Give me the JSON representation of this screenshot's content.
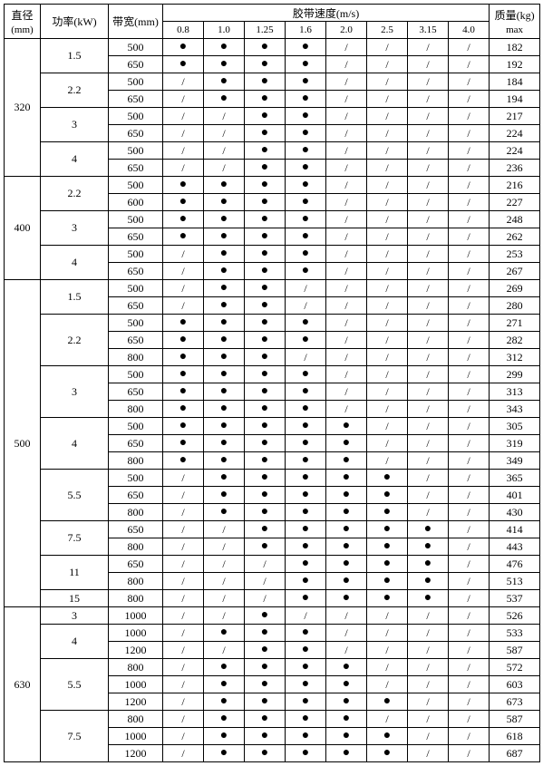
{
  "dot": "●",
  "slash": "/",
  "header": {
    "diameter": "直径",
    "diameter_unit": "(mm)",
    "power": "功率(kW)",
    "width": "带宽(mm)",
    "speed": "胶带速度(m/s)",
    "mass": "质量(kg)",
    "mass_sub": "max",
    "speeds": [
      "0.8",
      "1.0",
      "1.25",
      "1.6",
      "2.0",
      "2.5",
      "3.15",
      "4.0"
    ]
  },
  "colwidths": {
    "diameter": 40,
    "power": 75,
    "width": 60,
    "speed": 45,
    "mass": 56
  },
  "groups": [
    {
      "diameter": "320",
      "powers": [
        {
          "power": "1.5",
          "rows": [
            {
              "w": "500",
              "s": [
                "d",
                "d",
                "d",
                "d",
                "/",
                "/",
                "/",
                "/"
              ],
              "m": "182"
            },
            {
              "w": "650",
              "s": [
                "d",
                "d",
                "d",
                "d",
                "/",
                "/",
                "/",
                "/"
              ],
              "m": "192"
            }
          ]
        },
        {
          "power": "2.2",
          "rows": [
            {
              "w": "500",
              "s": [
                "/",
                "d",
                "d",
                "d",
                "/",
                "/",
                "/",
                "/"
              ],
              "m": "184"
            },
            {
              "w": "650",
              "s": [
                "/",
                "d",
                "d",
                "d",
                "/",
                "/",
                "/",
                "/"
              ],
              "m": "194"
            }
          ]
        },
        {
          "power": "3",
          "rows": [
            {
              "w": "500",
              "s": [
                "/",
                "/",
                "d",
                "d",
                "/",
                "/",
                "/",
                "/"
              ],
              "m": "217"
            },
            {
              "w": "650",
              "s": [
                "/",
                "/",
                "d",
                "d",
                "/",
                "/",
                "/",
                "/"
              ],
              "m": "224"
            }
          ]
        },
        {
          "power": "4",
          "rows": [
            {
              "w": "500",
              "s": [
                "/",
                "/",
                "d",
                "d",
                "/",
                "/",
                "/",
                "/"
              ],
              "m": "224"
            },
            {
              "w": "650",
              "s": [
                "/",
                "/",
                "d",
                "d",
                "/",
                "/",
                "/",
                "/"
              ],
              "m": "236"
            }
          ]
        }
      ]
    },
    {
      "diameter": "400",
      "powers": [
        {
          "power": "2.2",
          "rows": [
            {
              "w": "500",
              "s": [
                "d",
                "d",
                "d",
                "d",
                "/",
                "/",
                "/",
                "/"
              ],
              "m": "216"
            },
            {
              "w": "600",
              "s": [
                "d",
                "d",
                "d",
                "d",
                "/",
                "/",
                "/",
                "/"
              ],
              "m": "227"
            }
          ]
        },
        {
          "power": "3",
          "rows": [
            {
              "w": "500",
              "s": [
                "d",
                "d",
                "d",
                "d",
                "/",
                "/",
                "/",
                "/"
              ],
              "m": "248"
            },
            {
              "w": "650",
              "s": [
                "d",
                "d",
                "d",
                "d",
                "/",
                "/",
                "/",
                "/"
              ],
              "m": "262"
            }
          ]
        },
        {
          "power": "4",
          "rows": [
            {
              "w": "500",
              "s": [
                "/",
                "d",
                "d",
                "d",
                "/",
                "/",
                "/",
                "/"
              ],
              "m": "253"
            },
            {
              "w": "650",
              "s": [
                "/",
                "d",
                "d",
                "d",
                "/",
                "/",
                "/",
                "/"
              ],
              "m": "267"
            }
          ]
        }
      ]
    },
    {
      "diameter": "500",
      "powers": [
        {
          "power": "1.5",
          "rows": [
            {
              "w": "500",
              "s": [
                "/",
                "d",
                "d",
                "/",
                "/",
                "/",
                "/",
                "/"
              ],
              "m": "269"
            },
            {
              "w": "650",
              "s": [
                "/",
                "d",
                "d",
                "/",
                "/",
                "/",
                "/",
                "/"
              ],
              "m": "280"
            }
          ]
        },
        {
          "power": "2.2",
          "rows": [
            {
              "w": "500",
              "s": [
                "d",
                "d",
                "d",
                "d",
                "/",
                "/",
                "/",
                "/"
              ],
              "m": "271"
            },
            {
              "w": "650",
              "s": [
                "d",
                "d",
                "d",
                "d",
                "/",
                "/",
                "/",
                "/"
              ],
              "m": "282"
            },
            {
              "w": "800",
              "s": [
                "d",
                "d",
                "d",
                "/",
                "/",
                "/",
                "/",
                "/"
              ],
              "m": "312"
            }
          ]
        },
        {
          "power": "3",
          "rows": [
            {
              "w": "500",
              "s": [
                "d",
                "d",
                "d",
                "d",
                "/",
                "/",
                "/",
                "/"
              ],
              "m": "299"
            },
            {
              "w": "650",
              "s": [
                "d",
                "d",
                "d",
                "d",
                "/",
                "/",
                "/",
                "/"
              ],
              "m": "313"
            },
            {
              "w": "800",
              "s": [
                "d",
                "d",
                "d",
                "d",
                "/",
                "/",
                "/",
                "/"
              ],
              "m": "343"
            }
          ]
        },
        {
          "power": "4",
          "rows": [
            {
              "w": "500",
              "s": [
                "d",
                "d",
                "d",
                "d",
                "d",
                "/",
                "/",
                "/"
              ],
              "m": "305"
            },
            {
              "w": "650",
              "s": [
                "d",
                "d",
                "d",
                "d",
                "d",
                "/",
                "/",
                "/"
              ],
              "m": "319"
            },
            {
              "w": "800",
              "s": [
                "d",
                "d",
                "d",
                "d",
                "d",
                "/",
                "/",
                "/"
              ],
              "m": "349"
            }
          ]
        },
        {
          "power": "5.5",
          "rows": [
            {
              "w": "500",
              "s": [
                "/",
                "d",
                "d",
                "d",
                "d",
                "d",
                "/",
                "/"
              ],
              "m": "365"
            },
            {
              "w": "650",
              "s": [
                "/",
                "d",
                "d",
                "d",
                "d",
                "d",
                "/",
                "/"
              ],
              "m": "401"
            },
            {
              "w": "800",
              "s": [
                "/",
                "d",
                "d",
                "d",
                "d",
                "d",
                "/",
                "/"
              ],
              "m": "430"
            }
          ]
        },
        {
          "power": "7.5",
          "rows": [
            {
              "w": "650",
              "s": [
                "/",
                "/",
                "d",
                "d",
                "d",
                "d",
                "d",
                "/"
              ],
              "m": "414"
            },
            {
              "w": "800",
              "s": [
                "/",
                "/",
                "d",
                "d",
                "d",
                "d",
                "d",
                "/"
              ],
              "m": "443"
            }
          ]
        },
        {
          "power": "11",
          "rows": [
            {
              "w": "650",
              "s": [
                "/",
                "/",
                "/",
                "d",
                "d",
                "d",
                "d",
                "/"
              ],
              "m": "476"
            },
            {
              "w": "800",
              "s": [
                "/",
                "/",
                "/",
                "d",
                "d",
                "d",
                "d",
                "/"
              ],
              "m": "513"
            }
          ]
        },
        {
          "power": "15",
          "rows": [
            {
              "w": "800",
              "s": [
                "/",
                "/",
                "/",
                "d",
                "d",
                "d",
                "d",
                "/"
              ],
              "m": "537"
            }
          ]
        }
      ]
    },
    {
      "diameter": "630",
      "powers": [
        {
          "power": "3",
          "rows": [
            {
              "w": "1000",
              "s": [
                "/",
                "/",
                "d",
                "/",
                "/",
                "/",
                "/",
                "/"
              ],
              "m": "526"
            }
          ]
        },
        {
          "power": "4",
          "rows": [
            {
              "w": "1000",
              "s": [
                "/",
                "d",
                "d",
                "d",
                "/",
                "/",
                "/",
                "/"
              ],
              "m": "533"
            },
            {
              "w": "1200",
              "s": [
                "/",
                "/",
                "d",
                "d",
                "/",
                "/",
                "/",
                "/"
              ],
              "m": "587"
            }
          ]
        },
        {
          "power": "5.5",
          "rows": [
            {
              "w": "800",
              "s": [
                "/",
                "d",
                "d",
                "d",
                "d",
                "/",
                "/",
                "/"
              ],
              "m": "572"
            },
            {
              "w": "1000",
              "s": [
                "/",
                "d",
                "d",
                "d",
                "d",
                "/",
                "/",
                "/"
              ],
              "m": "603"
            },
            {
              "w": "1200",
              "s": [
                "/",
                "d",
                "d",
                "d",
                "d",
                "d",
                "/",
                "/"
              ],
              "m": "673"
            }
          ]
        },
        {
          "power": "7.5",
          "rows": [
            {
              "w": "800",
              "s": [
                "/",
                "d",
                "d",
                "d",
                "d",
                "/",
                "/",
                "/"
              ],
              "m": "587"
            },
            {
              "w": "1000",
              "s": [
                "/",
                "d",
                "d",
                "d",
                "d",
                "d",
                "/",
                "/"
              ],
              "m": "618"
            },
            {
              "w": "1200",
              "s": [
                "/",
                "d",
                "d",
                "d",
                "d",
                "d",
                "/",
                "/"
              ],
              "m": "687"
            }
          ]
        }
      ]
    }
  ]
}
